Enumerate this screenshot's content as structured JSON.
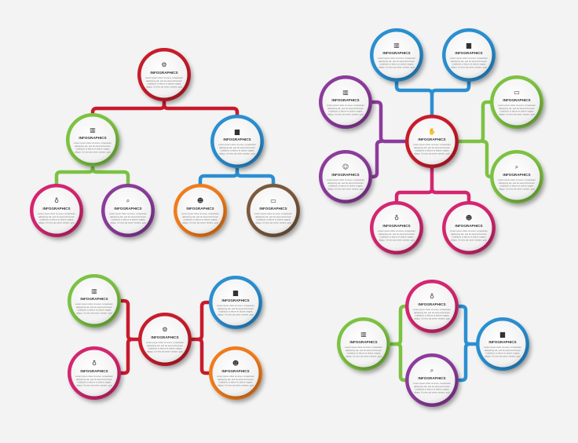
{
  "label": "INFOGRAPHICS",
  "body_text": [
    "Lorem ipsum dolor sit amet, consectetur",
    "adipiscing elit, sed do eiusmod tempor",
    "incididunt ut labore et dolore magna",
    "aliqua. Ut enim ad minim veniam, quis"
  ],
  "colors": {
    "red": "#c81a2c",
    "green": "#7cc242",
    "blue": "#2b8fd1",
    "pink": "#d4256f",
    "purple": "#8c3b9c",
    "orange": "#f07c1c",
    "brown": "#7a5a3c",
    "background": "#f3f3f3"
  },
  "icons": {
    "gear": "⚙",
    "chart": "▥",
    "briefcase": "▆",
    "bulb": "♁",
    "search": "⌕",
    "person": "☻",
    "monitor": "▭",
    "handshake": "✋",
    "head": "☺"
  },
  "diagrams": [
    {
      "name": "tree",
      "nodes": [
        {
          "icon": "gear",
          "color": "red"
        },
        {
          "icon": "chart",
          "color": "green"
        },
        {
          "icon": "briefcase",
          "color": "blue"
        },
        {
          "icon": "bulb",
          "color": "pink"
        },
        {
          "icon": "search",
          "color": "purple"
        },
        {
          "icon": "person",
          "color": "orange"
        },
        {
          "icon": "monitor",
          "color": "brown"
        }
      ]
    },
    {
      "name": "radial",
      "nodes": [
        {
          "icon": "handshake",
          "color": "red"
        },
        {
          "icon": "chart",
          "color": "blue"
        },
        {
          "icon": "briefcase",
          "color": "blue"
        },
        {
          "icon": "chart",
          "color": "purple"
        },
        {
          "icon": "head",
          "color": "purple"
        },
        {
          "icon": "monitor",
          "color": "green"
        },
        {
          "icon": "search",
          "color": "green"
        },
        {
          "icon": "bulb",
          "color": "pink"
        },
        {
          "icon": "person",
          "color": "pink"
        }
      ]
    },
    {
      "name": "hub",
      "nodes": [
        {
          "icon": "gear",
          "color": "red"
        },
        {
          "icon": "chart",
          "color": "green"
        },
        {
          "icon": "bulb",
          "color": "pink"
        },
        {
          "icon": "briefcase",
          "color": "blue"
        },
        {
          "icon": "person",
          "color": "orange"
        }
      ]
    },
    {
      "name": "chain",
      "nodes": [
        {
          "icon": "chart",
          "color": "green"
        },
        {
          "icon": "bulb",
          "color": "pink"
        },
        {
          "icon": "search",
          "color": "purple"
        },
        {
          "icon": "briefcase",
          "color": "blue"
        }
      ]
    }
  ]
}
